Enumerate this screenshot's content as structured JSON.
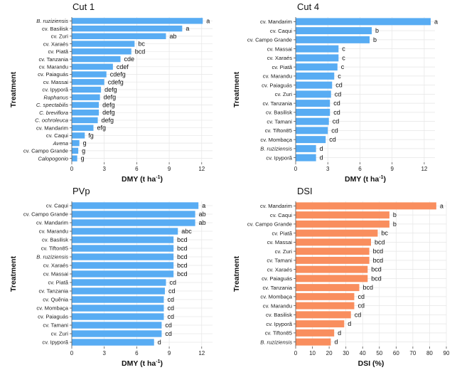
{
  "colors": {
    "blue": "#58ACF3",
    "orange": "#F98E5E"
  },
  "chart_data": [
    {
      "type": "bar",
      "orientation": "horizontal",
      "title": "Cut 1",
      "xlabel": "DMY (t ha",
      "xlabel_sup": "-1",
      "xlabel_end": ")",
      "ylabel": "Treatment",
      "xlim": [
        0,
        13
      ],
      "xticks": [
        "0",
        "3",
        "6",
        "9",
        "12"
      ],
      "grid": true,
      "color": "blue",
      "categories": [
        "B. ruziziensis",
        "cv. Basilisk",
        "cv. Zuri",
        "cv. Xaraés",
        "cv. Piatã",
        "cv. Tanzania",
        "cv. Marandu",
        "cv. Paiaguás",
        "cv. Massai",
        "cv. Ipyporã",
        "Raphanus",
        "C. spectabilis",
        "C. breviflora",
        "C. ochroleuca",
        "cv. Mandarim",
        "cv. Caqui",
        "Avena",
        "cv. Campo Grande",
        "Calopogonio"
      ],
      "italic": [
        true,
        false,
        false,
        false,
        false,
        false,
        false,
        false,
        false,
        false,
        true,
        true,
        true,
        true,
        false,
        false,
        true,
        false,
        true
      ],
      "values": [
        12.1,
        10.2,
        8.7,
        5.8,
        5.5,
        4.5,
        3.8,
        3.2,
        3.0,
        2.7,
        2.6,
        2.5,
        2.5,
        2.4,
        2.0,
        1.2,
        0.7,
        0.6,
        0.5
      ],
      "letters": [
        "a",
        "a",
        "ab",
        "bc",
        "bcd",
        "cde",
        "cdef",
        "cdefg",
        "cdefg",
        "defg",
        "defg",
        "defg",
        "defg",
        "defg",
        "efg",
        "fg",
        "g",
        "g",
        "g"
      ]
    },
    {
      "type": "bar",
      "orientation": "horizontal",
      "title": "Cut 4",
      "xlabel": "DMY (t ha",
      "xlabel_sup": "-1",
      "xlabel_end": ")",
      "ylabel": "Treatment",
      "xlim": [
        0,
        13
      ],
      "xticks": [
        "0",
        "3",
        "6",
        "9",
        "12"
      ],
      "grid": true,
      "color": "blue",
      "categories": [
        "cv. Mandarim",
        "cv. Caqui",
        "cv. Campo Grande",
        "cv. Massai",
        "cv. Xaraés",
        "cv. Piatã",
        "cv. Marandu",
        "cv. Paiaguás",
        "cv. Zuri",
        "cv. Tanzania",
        "cv. Basilisk",
        "cv. Tamani",
        "cv. Tifton85",
        "cv. Mombaça",
        "B. ruziziensis",
        "cv. Ipyporã"
      ],
      "italic": [
        false,
        false,
        false,
        false,
        false,
        false,
        false,
        false,
        false,
        false,
        false,
        false,
        false,
        false,
        true,
        false
      ],
      "values": [
        12.6,
        7.1,
        6.9,
        4.0,
        4.0,
        3.9,
        3.6,
        3.4,
        3.3,
        3.2,
        3.2,
        3.1,
        3.0,
        2.8,
        1.9,
        1.9
      ],
      "letters": [
        "a",
        "b",
        "b",
        "c",
        "c",
        "c",
        "c",
        "cd",
        "cd",
        "cd",
        "cd",
        "cd",
        "cd",
        "cd",
        "d",
        "d"
      ]
    },
    {
      "type": "bar",
      "orientation": "horizontal",
      "title": "PVp",
      "xlabel": "DMY (t ha",
      "xlabel_sup": "-1",
      "xlabel_end": ")",
      "ylabel": "Treatment",
      "xlim": [
        0,
        13
      ],
      "xticks": [
        "0",
        "3",
        "6",
        "9",
        "12"
      ],
      "grid": true,
      "color": "blue",
      "categories": [
        "cv. Caqui",
        "cv. Campo Grande",
        "cv. Mandarim",
        "cv. Marandu",
        "cv. Basilisk",
        "cv. Tifton85",
        "B. ruziziensis",
        "cv. Xaraés",
        "cv. Massai",
        "cv. Piatã",
        "cv. Tanzania",
        "cv. Quênia",
        "cv. Mombaça",
        "cv. Paiaguás",
        "cv. Tamani",
        "cv. Zuri",
        "cv. Ipyporã"
      ],
      "italic": [
        false,
        false,
        false,
        false,
        false,
        false,
        true,
        false,
        false,
        false,
        false,
        false,
        false,
        false,
        false,
        false,
        false
      ],
      "values": [
        11.7,
        11.4,
        11.4,
        9.8,
        9.4,
        9.4,
        9.4,
        9.4,
        9.4,
        8.7,
        8.6,
        8.5,
        8.5,
        8.5,
        8.3,
        8.3,
        7.6
      ],
      "letters": [
        "a",
        "ab",
        "ab",
        "abc",
        "bcd",
        "bcd",
        "bcd",
        "bcd",
        "bcd",
        "cd",
        "cd",
        "cd",
        "cd",
        "cd",
        "cd",
        "cd",
        "d"
      ]
    },
    {
      "type": "bar",
      "orientation": "horizontal",
      "title": "DSI",
      "xlabel": "DSI (%)",
      "xlabel_sup": "",
      "xlabel_end": "",
      "ylabel": "Treatment",
      "xlim": [
        0,
        90
      ],
      "xticks": [
        "0",
        "10",
        "20",
        "30",
        "40",
        "50",
        "60",
        "70",
        "80",
        "90"
      ],
      "grid": true,
      "color": "orange",
      "categories": [
        "cv. Mandarim",
        "cv. Caqui",
        "cv. Campo Grande",
        "cv. Piatã",
        "cv. Massai",
        "cv. Zuri",
        "cv. Tamani",
        "cv. Xaraés",
        "cv. Paiaguás",
        "cv. Tanzania",
        "cv. Mombaça",
        "cv. Marandu",
        "cv. Basilisk",
        "cv. Ipyporã",
        "cv. Tifton85",
        "B. ruziziensis"
      ],
      "italic": [
        false,
        false,
        false,
        false,
        false,
        false,
        false,
        false,
        false,
        false,
        false,
        false,
        false,
        false,
        false,
        true
      ],
      "values": [
        84,
        56,
        56,
        49,
        45,
        44,
        44,
        43,
        43,
        38,
        35,
        35,
        33,
        29,
        23,
        21
      ],
      "letters": [
        "a",
        "b",
        "b",
        "bc",
        "bcd",
        "bcd",
        "bcd",
        "bcd",
        "bcd",
        "bcd",
        "cd",
        "cd",
        "cd",
        "d",
        "d",
        "d"
      ]
    }
  ]
}
